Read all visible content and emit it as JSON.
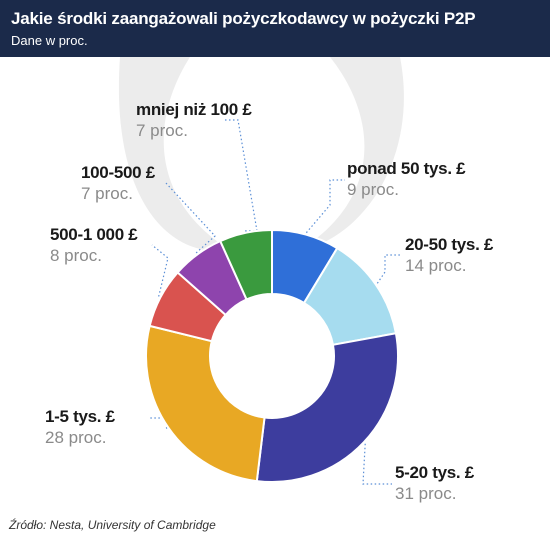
{
  "header": {
    "title": "Jakie środki zaangażowali pożyczkodawcy w pożyczki P2P",
    "subtitle": "Dane w proc."
  },
  "colors": {
    "header_bg": "#1b2a4a",
    "watermark": "#ececec",
    "leader": "#5b8fd6"
  },
  "chart_data": {
    "type": "pie",
    "donut": true,
    "slices": [
      {
        "label": "ponad 50 tys. £",
        "value": 9,
        "value_label": "9 proc.",
        "color": "#2f6fd8"
      },
      {
        "label": "20-50 tys. £",
        "value": 14,
        "value_label": "14 proc.",
        "color": "#a6dcef"
      },
      {
        "label": "5-20 tys. £",
        "value": 31,
        "value_label": "31 proc.",
        "color": "#3d3d9e"
      },
      {
        "label": "1-5 tys. £",
        "value": 28,
        "value_label": "28 proc.",
        "color": "#e8a824"
      },
      {
        "label": "500-1 000 £",
        "value": 8,
        "value_label": "8 proc.",
        "color": "#d9534f"
      },
      {
        "label": "100-500 £",
        "value": 7,
        "value_label": "7 proc.",
        "color": "#8e44ad"
      },
      {
        "label": "mniej niż 100 £",
        "value": 7,
        "value_label": "7 proc.",
        "color": "#3a9a3e"
      }
    ]
  },
  "source": "Źródło: Nesta, University of Cambridge"
}
